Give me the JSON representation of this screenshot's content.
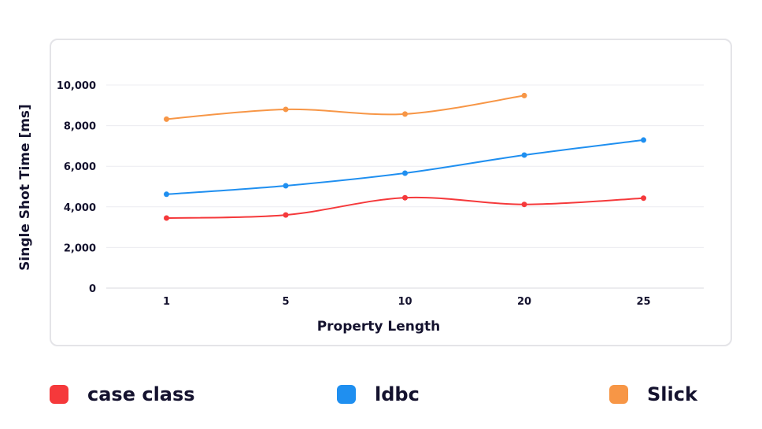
{
  "chart_data": {
    "type": "line",
    "xlabel": "Property Length",
    "ylabel": "Single Shot Time [ms]",
    "categories": [
      "1",
      "5",
      "10",
      "20",
      "25"
    ],
    "ylim": [
      0,
      11000
    ],
    "yticks": [
      0,
      2000,
      4000,
      6000,
      8000,
      10000
    ],
    "ytick_labels": [
      "0",
      "2,000",
      "4,000",
      "6,000",
      "8,000",
      "10,000"
    ],
    "grid": true,
    "legend_position": "bottom",
    "series": [
      {
        "name": "case class",
        "color": "#f5393b",
        "values": [
          3450,
          3600,
          4450,
          4120,
          4430
        ]
      },
      {
        "name": "ldbc",
        "color": "#1f8ff0",
        "values": [
          4620,
          5040,
          5660,
          6550,
          7290
        ]
      },
      {
        "name": "Slick",
        "color": "#f79646",
        "values": [
          8320,
          8800,
          8570,
          9480,
          null
        ]
      }
    ]
  }
}
